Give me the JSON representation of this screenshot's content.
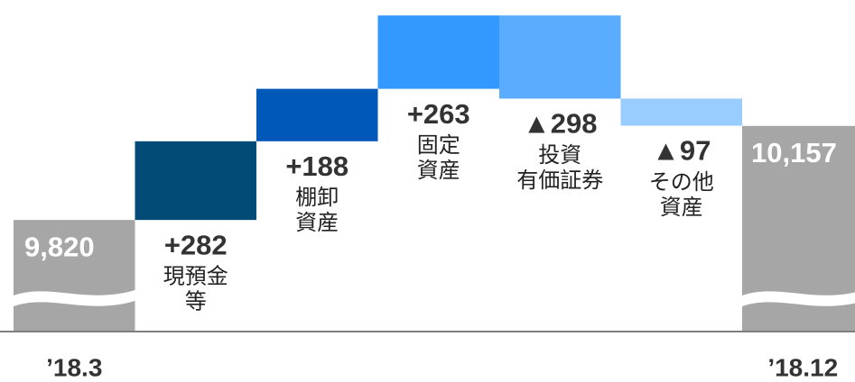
{
  "chart_data": {
    "type": "waterfall",
    "categories": [
      "’18.3",
      [
        "現預金",
        "等"
      ],
      [
        "棚卸",
        "資産"
      ],
      [
        "固定",
        "資産"
      ],
      [
        "投資",
        "有価証券"
      ],
      [
        "その他",
        "資産"
      ],
      "’18.12"
    ],
    "values": [
      9820,
      282,
      188,
      263,
      -298,
      -97,
      10157
    ],
    "value_labels": [
      "9,820",
      "+282",
      "+188",
      "+263",
      "▲298",
      "▲97",
      "10,157"
    ],
    "total": [
      true,
      false,
      false,
      false,
      false,
      false,
      true
    ],
    "colors": [
      "#a6a6a6",
      "#024b77",
      "#0058b8",
      "#3399ff",
      "#5aacff",
      "#99ccff",
      "#a6a6a6"
    ],
    "ylim": [
      9420,
      10560
    ]
  }
}
